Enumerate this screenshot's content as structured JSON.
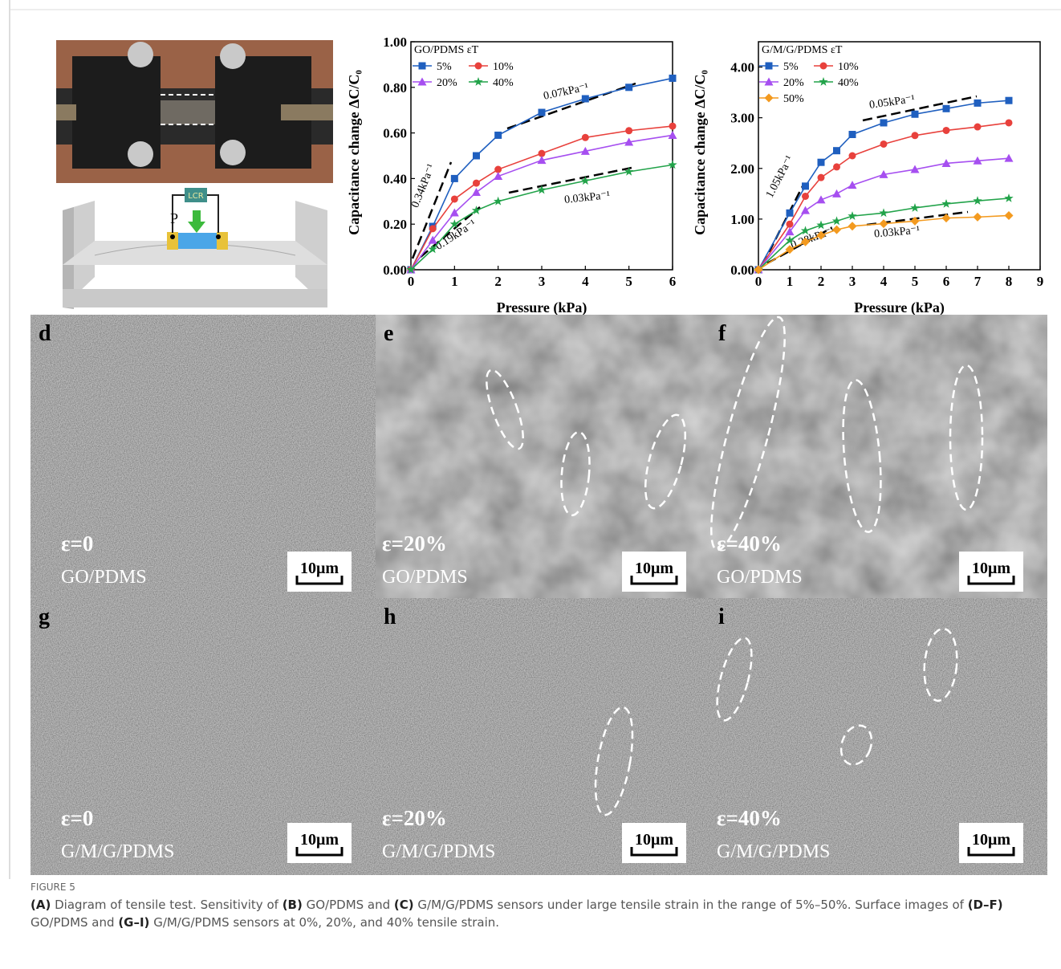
{
  "chart_data": [
    {
      "type": "line",
      "x_label": "Pressure (kPa)",
      "y_label": "Capacitance change ΔC/C₀",
      "legend_title": "GO/PDMS εT",
      "x": [
        0,
        0.5,
        1,
        1.5,
        2,
        3,
        4,
        5,
        6
      ],
      "series": [
        {
          "name": "5%",
          "color": "#1f5fbf",
          "marker": "square",
          "values": [
            0,
            0.19,
            0.4,
            0.5,
            0.59,
            0.69,
            0.75,
            0.8,
            0.84
          ]
        },
        {
          "name": "10%",
          "color": "#e8413c",
          "marker": "circle",
          "values": [
            0,
            0.18,
            0.31,
            0.38,
            0.44,
            0.51,
            0.58,
            0.61,
            0.63
          ]
        },
        {
          "name": "20%",
          "color": "#a64ff0",
          "marker": "triangle",
          "values": [
            0,
            0.13,
            0.25,
            0.34,
            0.41,
            0.48,
            0.52,
            0.56,
            0.59
          ]
        },
        {
          "name": "40%",
          "color": "#22a34a",
          "marker": "star",
          "values": [
            0,
            0.09,
            0.2,
            0.26,
            0.3,
            0.35,
            0.39,
            0.43,
            0.46
          ]
        }
      ],
      "xlim": [
        0,
        6
      ],
      "xticks": [
        0,
        1,
        2,
        3,
        4,
        5,
        6
      ],
      "ylim": [
        0,
        1
      ],
      "yticks": [
        {
          "value": 0,
          "label": "0.00"
        },
        {
          "value": 0.2,
          "label": "0.20"
        },
        {
          "value": 0.4,
          "label": "0.40"
        },
        {
          "value": 0.6,
          "label": "0.60"
        },
        {
          "value": 0.8,
          "label": "0.80"
        },
        {
          "value": 1,
          "label": "1.00"
        }
      ],
      "annotations": [
        "0.34kPa⁻¹",
        "0.19kPa⁻¹",
        "0.07kPa⁻¹",
        "0.03kPa⁻¹"
      ]
    },
    {
      "type": "line",
      "x_label": "Pressure (kPa)",
      "y_label": "Capacitance change ΔC/C₀",
      "legend_title": "G/M/G/PDMS εT",
      "x": [
        0,
        1,
        1.5,
        2,
        2.5,
        3,
        4,
        5,
        6,
        7,
        8
      ],
      "series": [
        {
          "name": "5%",
          "color": "#1f5fbf",
          "marker": "square",
          "values": [
            0,
            1.12,
            1.65,
            2.12,
            2.35,
            2.67,
            2.9,
            3.07,
            3.18,
            3.29,
            3.34
          ]
        },
        {
          "name": "10%",
          "color": "#e8413c",
          "marker": "circle",
          "values": [
            0,
            0.9,
            1.45,
            1.82,
            2.03,
            2.25,
            2.48,
            2.65,
            2.75,
            2.82,
            2.9
          ]
        },
        {
          "name": "20%",
          "color": "#a64ff0",
          "marker": "triangle",
          "values": [
            0,
            0.75,
            1.17,
            1.38,
            1.5,
            1.67,
            1.88,
            1.98,
            2.1,
            2.15,
            2.2
          ]
        },
        {
          "name": "40%",
          "color": "#22a34a",
          "marker": "star",
          "values": [
            0,
            0.58,
            0.77,
            0.88,
            0.96,
            1.06,
            1.12,
            1.22,
            1.3,
            1.36,
            1.41
          ]
        },
        {
          "name": "50%",
          "color": "#f39a1f",
          "marker": "diamond",
          "values": [
            0,
            0.4,
            0.55,
            0.68,
            0.79,
            0.86,
            0.91,
            0.96,
            1.02,
            1.04,
            1.07
          ]
        }
      ],
      "xlim": [
        0,
        9
      ],
      "xticks": [
        0,
        1,
        2,
        3,
        4,
        5,
        6,
        7,
        8,
        9
      ],
      "ylim": [
        0,
        4.5
      ],
      "yticks": [
        {
          "value": 0,
          "label": "0.00"
        },
        {
          "value": 1,
          "label": "1.00"
        },
        {
          "value": 2,
          "label": "2.00"
        },
        {
          "value": 3,
          "label": "3.00"
        },
        {
          "value": 4,
          "label": "4.00"
        }
      ],
      "annotations": [
        "1.05kPa⁻¹",
        "0.05kPa⁻¹",
        "0.28kPa⁻¹",
        "0.03kPa⁻¹"
      ]
    }
  ],
  "schematic": {
    "meter": "LCR",
    "force": "P"
  },
  "panels": [
    {
      "letter": "d",
      "strain": "ε=0",
      "material": "GO/PDMS",
      "scale": "10μm"
    },
    {
      "letter": "e",
      "strain": "ε=20%",
      "material": "GO/PDMS",
      "scale": "10μm"
    },
    {
      "letter": "f",
      "strain": "ε=40%",
      "material": "GO/PDMS",
      "scale": "10μm"
    },
    {
      "letter": "g",
      "strain": "ε=0",
      "material": "G/M/G/PDMS",
      "scale": "10μm"
    },
    {
      "letter": "h",
      "strain": "ε=20%",
      "material": "G/M/G/PDMS",
      "scale": "10μm"
    },
    {
      "letter": "i",
      "strain": "ε=40%",
      "material": "G/M/G/PDMS",
      "scale": "10μm"
    }
  ],
  "caption": {
    "label": "FIGURE 5",
    "segments": [
      {
        "text": "(A)",
        "bold": true
      },
      {
        "text": " Diagram of tensile test. Sensitivity of ",
        "bold": false
      },
      {
        "text": "(B)",
        "bold": true
      },
      {
        "text": " GO/PDMS and ",
        "bold": false
      },
      {
        "text": "(C)",
        "bold": true
      },
      {
        "text": " G/M/G/PDMS sensors under large tensile strain in the range of 5%–50%. Surface images of ",
        "bold": false
      },
      {
        "text": "(D–F)",
        "bold": true
      },
      {
        "text": " GO/PDMS and ",
        "bold": false
      },
      {
        "text": "(G–I)",
        "bold": true
      },
      {
        "text": " G/M/G/PDMS sensors at 0%, 20%, and 40% tensile strain.",
        "bold": false
      }
    ]
  }
}
